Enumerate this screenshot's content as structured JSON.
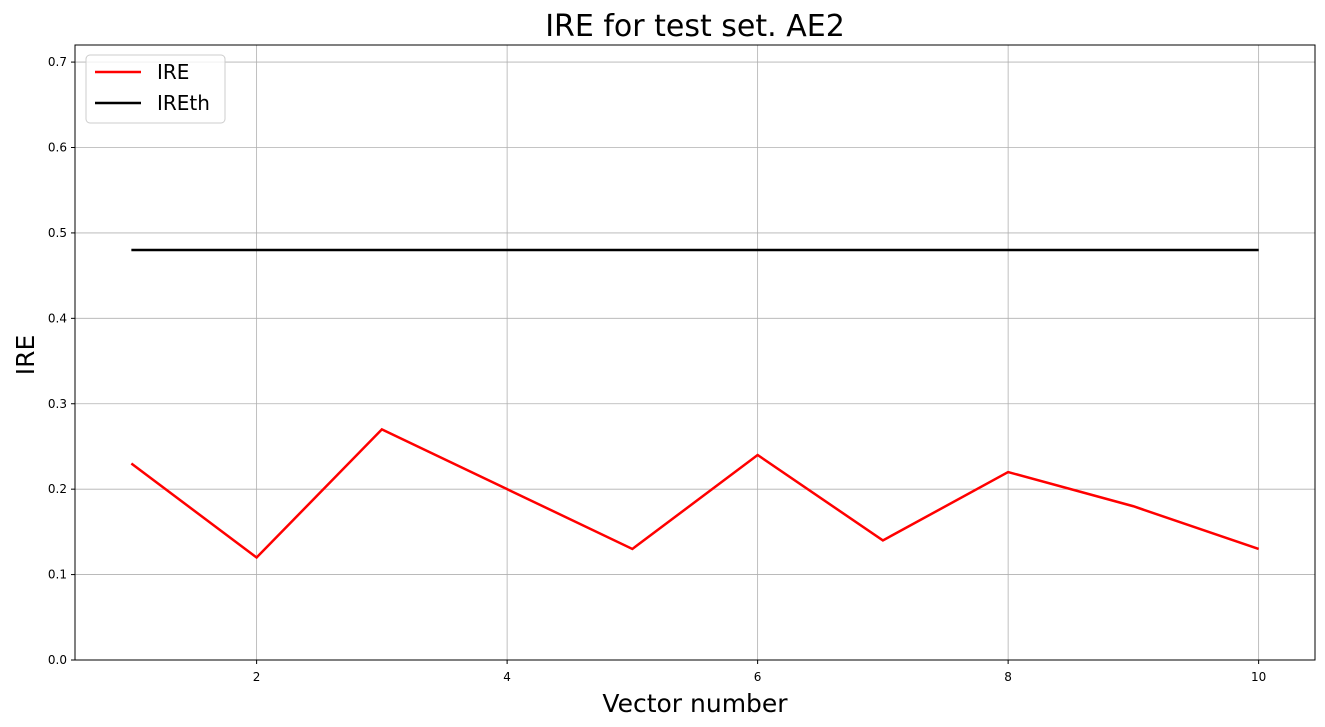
{
  "chart_data": {
    "type": "line",
    "title": "IRE for test set. AE2",
    "xlabel": "Vector number",
    "ylabel": "IRE",
    "xlim": [
      0.55,
      10.45
    ],
    "ylim": [
      0,
      0.72
    ],
    "xticks": [
      2,
      4,
      6,
      8,
      10
    ],
    "yticks": [
      0.0,
      0.1,
      0.2,
      0.3,
      0.4,
      0.5,
      0.6,
      0.7
    ],
    "ytick_labels": [
      "0.0",
      "0.1",
      "0.2",
      "0.3",
      "0.4",
      "0.5",
      "0.6",
      "0.7"
    ],
    "grid": true,
    "legend_position": "upper-left",
    "x": [
      1,
      2,
      3,
      4,
      5,
      6,
      7,
      8,
      9,
      10
    ],
    "series": [
      {
        "name": "IRE",
        "color": "#ff0000",
        "values": [
          0.23,
          0.12,
          0.27,
          0.2,
          0.13,
          0.24,
          0.14,
          0.22,
          0.18,
          0.13
        ]
      },
      {
        "name": "IREth",
        "color": "#000000",
        "values": [
          0.48,
          0.48,
          0.48,
          0.48,
          0.48,
          0.48,
          0.48,
          0.48,
          0.48,
          0.48
        ]
      }
    ]
  }
}
